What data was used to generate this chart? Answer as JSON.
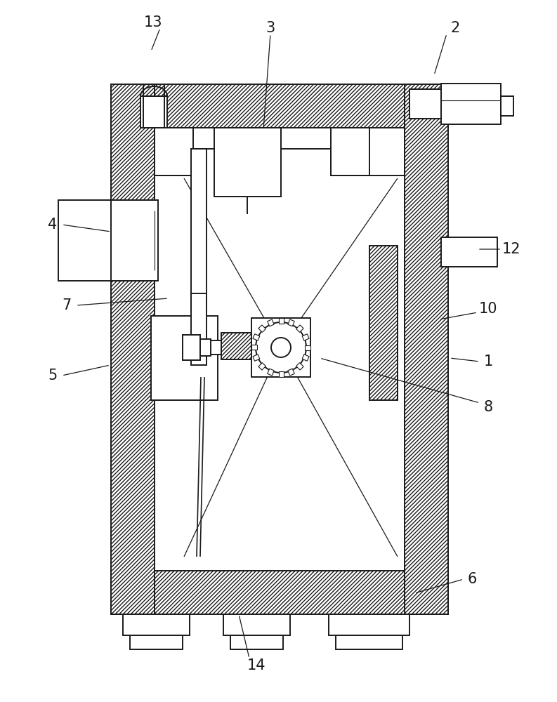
{
  "bg_color": "#ffffff",
  "line_color": "#1a1a1a",
  "lw": 1.4,
  "fig_width": 7.93,
  "fig_height": 10.0
}
